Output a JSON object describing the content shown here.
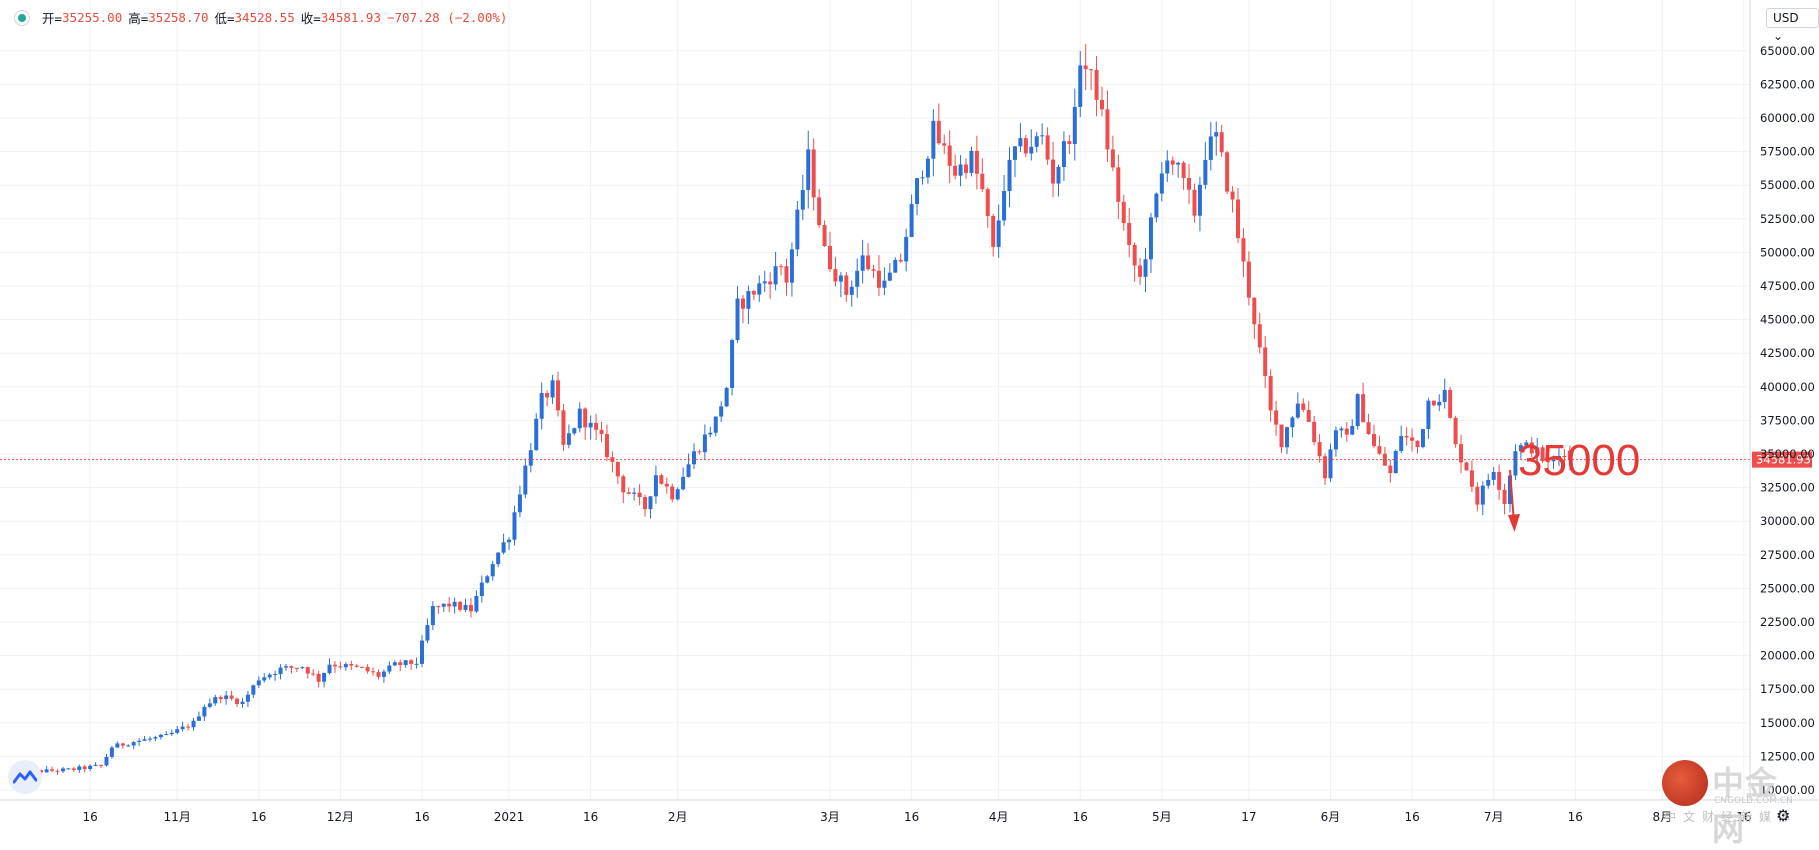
{
  "ohlc_bar": {
    "open_label": "开=",
    "open": "35255.00",
    "high_label": "高=",
    "high": "35258.70",
    "low_label": "低=",
    "low": "34528.55",
    "close_label": "收=",
    "close": "34581.93",
    "change": "−707.28 (−2.00%)"
  },
  "currency_button": "USD",
  "annotation": {
    "text": "35000"
  },
  "watermark": {
    "brand": "中金网",
    "sub": "CNGOLD.COM.CN",
    "cn": "中文财经新媒体"
  },
  "colors": {
    "up": "#2a6fd6",
    "down": "#ef4d4d",
    "grid": "#eef1f5",
    "price_line": "#ef4d4d",
    "axis_text": "#131722"
  },
  "chart_data": {
    "type": "candlestick",
    "title": "",
    "ylim": [
      10000,
      67500
    ],
    "yticks": [
      "10000.00",
      "12500.00",
      "15000.00",
      "17500.00",
      "20000.00",
      "22500.00",
      "25000.00",
      "27500.00",
      "30000.00",
      "32500.00",
      "35000.00",
      "37500.00",
      "40000.00",
      "42500.00",
      "45000.00",
      "47500.00",
      "50000.00",
      "52500.00",
      "55000.00",
      "57500.00",
      "60000.00",
      "62500.00",
      "65000.00"
    ],
    "xticks": [
      {
        "label": "16",
        "index": 14
      },
      {
        "label": "11月",
        "index": 30
      },
      {
        "label": "16",
        "index": 45
      },
      {
        "label": "12月",
        "index": 60
      },
      {
        "label": "16",
        "index": 75
      },
      {
        "label": "2021",
        "index": 91
      },
      {
        "label": "16",
        "index": 106
      },
      {
        "label": "2月",
        "index": 122
      },
      {
        "label": "3月",
        "index": 150
      },
      {
        "label": "16",
        "index": 165
      },
      {
        "label": "4月",
        "index": 181
      },
      {
        "label": "16",
        "index": 196
      },
      {
        "label": "5月",
        "index": 211
      },
      {
        "label": "17",
        "index": 227
      },
      {
        "label": "6月",
        "index": 242
      },
      {
        "label": "16",
        "index": 257
      },
      {
        "label": "7月",
        "index": 272
      },
      {
        "label": "16",
        "index": 287
      },
      {
        "label": "8月",
        "index": 303
      },
      {
        "label": "16",
        "index": 318
      }
    ],
    "last_price": 34581.93,
    "last_price_label": "34581.93",
    "anchors": [
      [
        0,
        11300
      ],
      [
        10,
        11500
      ],
      [
        16,
        11800
      ],
      [
        18,
        13200
      ],
      [
        22,
        13600
      ],
      [
        28,
        14000
      ],
      [
        33,
        15000
      ],
      [
        35,
        16300
      ],
      [
        38,
        17000
      ],
      [
        42,
        16500
      ],
      [
        45,
        18300
      ],
      [
        49,
        19000
      ],
      [
        53,
        19200
      ],
      [
        56,
        18200
      ],
      [
        58,
        19400
      ],
      [
        64,
        19000
      ],
      [
        67,
        18500
      ],
      [
        70,
        19300
      ],
      [
        74,
        19500
      ],
      [
        77,
        23500
      ],
      [
        80,
        23800
      ],
      [
        84,
        23400
      ],
      [
        88,
        27000
      ],
      [
        91,
        29000
      ],
      [
        94,
        34000
      ],
      [
        97,
        39000
      ],
      [
        99,
        40000
      ],
      [
        101,
        35500
      ],
      [
        104,
        38000
      ],
      [
        108,
        36000
      ],
      [
        112,
        32500
      ],
      [
        116,
        31000
      ],
      [
        118,
        33500
      ],
      [
        121,
        32000
      ],
      [
        125,
        35000
      ],
      [
        129,
        37500
      ],
      [
        131,
        40000
      ],
      [
        133,
        46000
      ],
      [
        137,
        47500
      ],
      [
        141,
        49000
      ],
      [
        142,
        48000
      ],
      [
        146,
        57000
      ],
      [
        149,
        50000
      ],
      [
        153,
        47000
      ],
      [
        156,
        49500
      ],
      [
        160,
        47500
      ],
      [
        163,
        49500
      ],
      [
        166,
        55000
      ],
      [
        169,
        59000
      ],
      [
        173,
        56000
      ],
      [
        176,
        57000
      ],
      [
        178,
        54500
      ],
      [
        180,
        50000
      ],
      [
        182,
        55000
      ],
      [
        184,
        57500
      ],
      [
        189,
        58500
      ],
      [
        191,
        55500
      ],
      [
        195,
        60000
      ],
      [
        196,
        64500
      ],
      [
        199,
        62000
      ],
      [
        201,
        58000
      ],
      [
        203,
        54000
      ],
      [
        205,
        50000
      ],
      [
        207,
        48000
      ],
      [
        210,
        54000
      ],
      [
        212,
        57500
      ],
      [
        214,
        56000
      ],
      [
        217,
        53000
      ],
      [
        219,
        57500
      ],
      [
        221,
        58500
      ],
      [
        224,
        53500
      ],
      [
        226,
        49000
      ],
      [
        228,
        45000
      ],
      [
        231,
        38000
      ],
      [
        233,
        36000
      ],
      [
        236,
        39000
      ],
      [
        238,
        37500
      ],
      [
        241,
        33500
      ],
      [
        243,
        37000
      ],
      [
        245,
        36000
      ],
      [
        247,
        39000
      ],
      [
        250,
        35500
      ],
      [
        253,
        33500
      ],
      [
        255,
        36500
      ],
      [
        258,
        35500
      ],
      [
        260,
        39000
      ],
      [
        263,
        39500
      ],
      [
        265,
        35500
      ],
      [
        267,
        34000
      ],
      [
        269,
        31500
      ],
      [
        272,
        34000
      ],
      [
        274,
        31500
      ],
      [
        276,
        35500
      ],
      [
        279,
        35500
      ],
      [
        282,
        34200
      ],
      [
        285,
        35250
      ],
      [
        286,
        34581.93
      ]
    ]
  }
}
